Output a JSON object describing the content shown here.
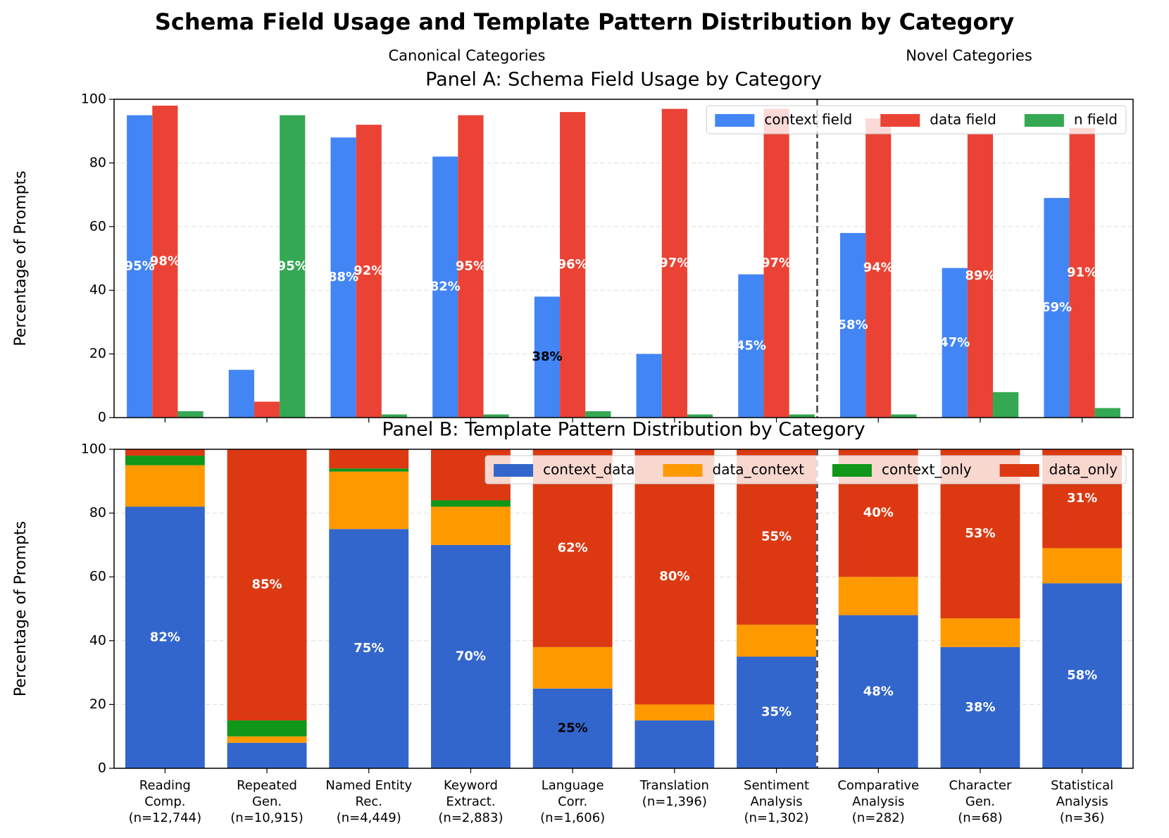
{
  "title": "Schema Field Usage and Template Pattern Distribution by Category",
  "annotations": [
    "Canonical Categories",
    "Novel Categories"
  ],
  "chart_data": [
    {
      "type": "bar",
      "title": "Panel A: Schema Field Usage by Category",
      "ylabel": "Percentage of Prompts",
      "ylim": [
        0,
        100
      ],
      "yticks": [
        0,
        20,
        40,
        60,
        80,
        100
      ],
      "grid": true,
      "legend_loc": "upper right",
      "value_label_color": "#ffffff",
      "series": [
        {
          "name": "context field",
          "color": "#4285f4",
          "values": [
            95,
            15,
            88,
            82,
            38,
            20,
            45,
            58,
            47,
            69
          ],
          "value_labels": [
            "95%",
            null,
            "88%",
            "82%",
            "38%",
            null,
            "45%",
            "58%",
            "47%",
            "69%"
          ],
          "value_label_colors": [
            null,
            null,
            null,
            null,
            "#000000",
            null,
            null,
            null,
            null,
            null
          ]
        },
        {
          "name": "data field",
          "color": "#ea4335",
          "values": [
            98,
            5,
            92,
            95,
            96,
            97,
            97,
            94,
            89,
            91
          ],
          "value_labels": [
            "98%",
            null,
            "92%",
            "95%",
            "96%",
            "97%",
            "97%",
            "94%",
            "89%",
            "91%"
          ]
        },
        {
          "name": "n field",
          "color": "#34a853",
          "values": [
            2,
            95,
            1,
            1,
            2,
            1,
            1,
            1,
            8,
            3
          ],
          "value_labels": [
            null,
            "95%",
            null,
            null,
            null,
            null,
            null,
            null,
            null,
            null
          ]
        }
      ]
    },
    {
      "type": "stacked_bar",
      "title": "Panel B: Template Pattern Distribution by Category",
      "ylabel": "Percentage of Prompts",
      "categories": [
        "Reading\nComp.\n(n=12,744)",
        "Repeated\nGen.\n(n=10,915)",
        "Named Entity\nRec.\n(n=4,449)",
        "Keyword\nExtract.\n(n=2,883)",
        "Language\nCorr.\n(n=1,606)",
        "Translation\n(n=1,396)",
        "Sentiment\nAnalysis\n(n=1,302)",
        "Comparative\nAnalysis\n(n=282)",
        "Character\nGen.\n(n=68)",
        "Statistical\nAnalysis\n(n=36)"
      ],
      "ylim": [
        0,
        100
      ],
      "yticks": [
        0,
        20,
        40,
        60,
        80,
        100
      ],
      "grid": true,
      "legend_loc": "upper right",
      "value_label_color": "#ffffff",
      "series": [
        {
          "name": "context_data",
          "color": "#3366cc",
          "values": [
            82,
            8,
            75,
            70,
            25,
            15,
            35,
            48,
            38,
            58
          ],
          "value_labels": [
            "82%",
            null,
            "75%",
            "70%",
            "25%",
            null,
            "35%",
            "48%",
            "38%",
            "58%"
          ],
          "value_label_colors": [
            null,
            null,
            null,
            null,
            "#000000",
            null,
            null,
            null,
            null,
            null
          ]
        },
        {
          "name": "data_context",
          "color": "#ff9900",
          "values": [
            13,
            2,
            18,
            12,
            13,
            5,
            10,
            12,
            9,
            11
          ]
        },
        {
          "name": "context_only",
          "color": "#109618",
          "values": [
            3,
            5,
            1,
            2,
            0,
            0,
            0,
            0,
            0,
            0
          ]
        },
        {
          "name": "data_only",
          "color": "#dc3912",
          "values": [
            2,
            85,
            6,
            16,
            62,
            80,
            55,
            40,
            53,
            31
          ],
          "value_labels": [
            null,
            "85%",
            null,
            null,
            "62%",
            "80%",
            "55%",
            "40%",
            "53%",
            "31%"
          ]
        }
      ]
    }
  ]
}
